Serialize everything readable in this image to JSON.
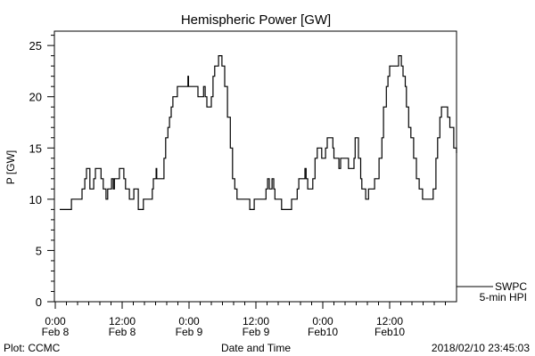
{
  "chart_data": {
    "type": "line",
    "title": "Hemispheric Power [GW]",
    "xlabel": "Date and Time",
    "ylabel": "P [GW]",
    "xlim_hours": [
      0,
      72
    ],
    "ylim": [
      0,
      26.4
    ],
    "y_ticks": [
      0,
      5,
      10,
      15,
      20,
      25
    ],
    "x_ticks": [
      {
        "hour": 0,
        "line1": "0:00",
        "line2": "Feb 8"
      },
      {
        "hour": 12,
        "line1": "12:00",
        "line2": "Feb 8"
      },
      {
        "hour": 24,
        "line1": "0:00",
        "line2": "Feb 9"
      },
      {
        "hour": 36,
        "line1": "12:00",
        "line2": "Feb 9"
      },
      {
        "hour": 48,
        "line1": "0:00",
        "line2": "Feb10"
      },
      {
        "hour": 60,
        "line1": "12:00",
        "line2": "Feb10"
      }
    ],
    "grid": false,
    "legend": {
      "position": "bottom-right-outside",
      "line1": "SWPC",
      "line2": "5-min HPI"
    },
    "series": [
      {
        "name": "SWPC 5-min HPI",
        "step": true,
        "points": [
          [
            0.8,
            9
          ],
          [
            2.9,
            10
          ],
          [
            4.8,
            11
          ],
          [
            5.3,
            12
          ],
          [
            5.6,
            13
          ],
          [
            6.2,
            11
          ],
          [
            6.9,
            12
          ],
          [
            7.2,
            13
          ],
          [
            8.2,
            12
          ],
          [
            8.6,
            11
          ],
          [
            9.1,
            10
          ],
          [
            9.4,
            11
          ],
          [
            10.1,
            12
          ],
          [
            10.4,
            11
          ],
          [
            10.6,
            12
          ],
          [
            11.5,
            13
          ],
          [
            12.3,
            12
          ],
          [
            12.6,
            11
          ],
          [
            13.3,
            10
          ],
          [
            14.1,
            11
          ],
          [
            14.9,
            9
          ],
          [
            15.8,
            10
          ],
          [
            17.4,
            11
          ],
          [
            17.6,
            12
          ],
          [
            18.1,
            13
          ],
          [
            18.2,
            12
          ],
          [
            19.5,
            14
          ],
          [
            19.8,
            16
          ],
          [
            20.2,
            17
          ],
          [
            20.5,
            18
          ],
          [
            20.8,
            19
          ],
          [
            21.1,
            20
          ],
          [
            21.9,
            21
          ],
          [
            23.8,
            22
          ],
          [
            23.9,
            21
          ],
          [
            25.6,
            20
          ],
          [
            26.6,
            21
          ],
          [
            26.9,
            20
          ],
          [
            27.2,
            19
          ],
          [
            28,
            20
          ],
          [
            28.3,
            22
          ],
          [
            28.6,
            23
          ],
          [
            29.3,
            24
          ],
          [
            29.9,
            23
          ],
          [
            30.4,
            21
          ],
          [
            30.9,
            18
          ],
          [
            31.4,
            15
          ],
          [
            31.8,
            12
          ],
          [
            32.2,
            11
          ],
          [
            32.6,
            10
          ],
          [
            34.9,
            9
          ],
          [
            35.7,
            10
          ],
          [
            37.8,
            11
          ],
          [
            38.1,
            12
          ],
          [
            38.4,
            11
          ],
          [
            38.9,
            12
          ],
          [
            39.2,
            11
          ],
          [
            39.4,
            10
          ],
          [
            40.6,
            9
          ],
          [
            42.4,
            10
          ],
          [
            43.4,
            11
          ],
          [
            43.7,
            12
          ],
          [
            44.8,
            13
          ],
          [
            45,
            12
          ],
          [
            45.3,
            11
          ],
          [
            46.2,
            12
          ],
          [
            46.6,
            14
          ],
          [
            47.0,
            15
          ],
          [
            47.8,
            14
          ],
          [
            48.5,
            15
          ],
          [
            48.8,
            16
          ],
          [
            49.8,
            15
          ],
          [
            50,
            14
          ],
          [
            50.9,
            13
          ],
          [
            51.2,
            14
          ],
          [
            52.6,
            13
          ],
          [
            53.6,
            14
          ],
          [
            53.8,
            16
          ],
          [
            54.4,
            14
          ],
          [
            54.8,
            12
          ],
          [
            55.0,
            11
          ],
          [
            55.7,
            10
          ],
          [
            56.2,
            11
          ],
          [
            57.3,
            12
          ],
          [
            58.1,
            14
          ],
          [
            58.6,
            16
          ],
          [
            58.9,
            19
          ],
          [
            59.4,
            21
          ],
          [
            59.7,
            22
          ],
          [
            60,
            23
          ],
          [
            61.6,
            24
          ],
          [
            62.1,
            23
          ],
          [
            62.4,
            22
          ],
          [
            62.8,
            21
          ],
          [
            63,
            19
          ],
          [
            63.4,
            17
          ],
          [
            63.8,
            16
          ],
          [
            64.3,
            14
          ],
          [
            64.8,
            12
          ],
          [
            65.3,
            11
          ],
          [
            65.9,
            10
          ],
          [
            67.8,
            11
          ],
          [
            68.3,
            14
          ],
          [
            68.6,
            16
          ],
          [
            69,
            18
          ],
          [
            69.3,
            19
          ],
          [
            70.4,
            18
          ],
          [
            70.8,
            17
          ],
          [
            71.5,
            15
          ],
          [
            72,
            14.5
          ]
        ]
      }
    ]
  },
  "footer": {
    "credit": "Plot: CCMC",
    "timestamp": "2018/02/10 23:45:03"
  }
}
